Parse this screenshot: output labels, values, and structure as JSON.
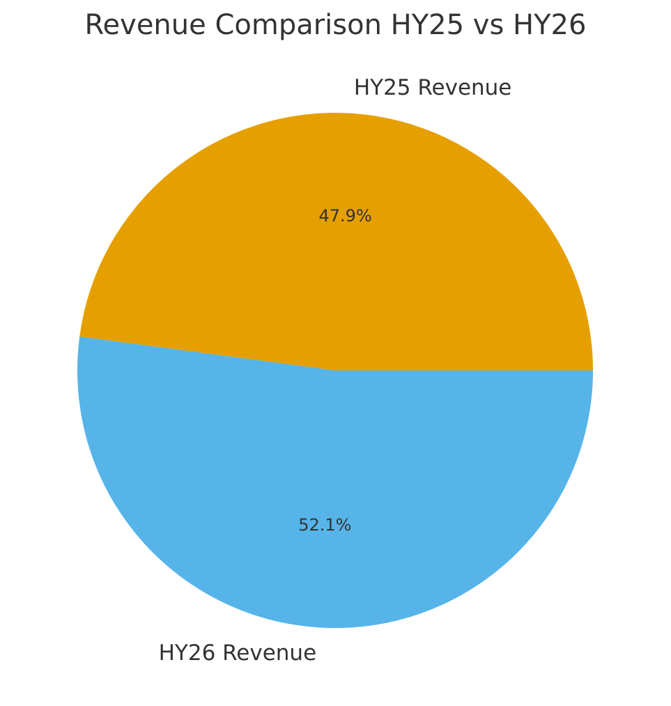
{
  "title": "Revenue Comparison HY25 vs HY26",
  "chart_data": {
    "type": "pie",
    "title": "Revenue Comparison HY25 vs HY26",
    "slices": [
      {
        "label": "HY25 Revenue",
        "value": 47.9,
        "pct_label": "47.9%",
        "color": "#E69F00"
      },
      {
        "label": "HY26 Revenue",
        "value": 52.1,
        "pct_label": "52.1%",
        "color": "#56B4E9"
      }
    ],
    "startangle": 0,
    "direction": "counterclockwise",
    "labeldistance": 1.1,
    "pctdistance": 0.6,
    "legend": "none",
    "background_color": "#ffffff",
    "text_color": "#333333"
  }
}
